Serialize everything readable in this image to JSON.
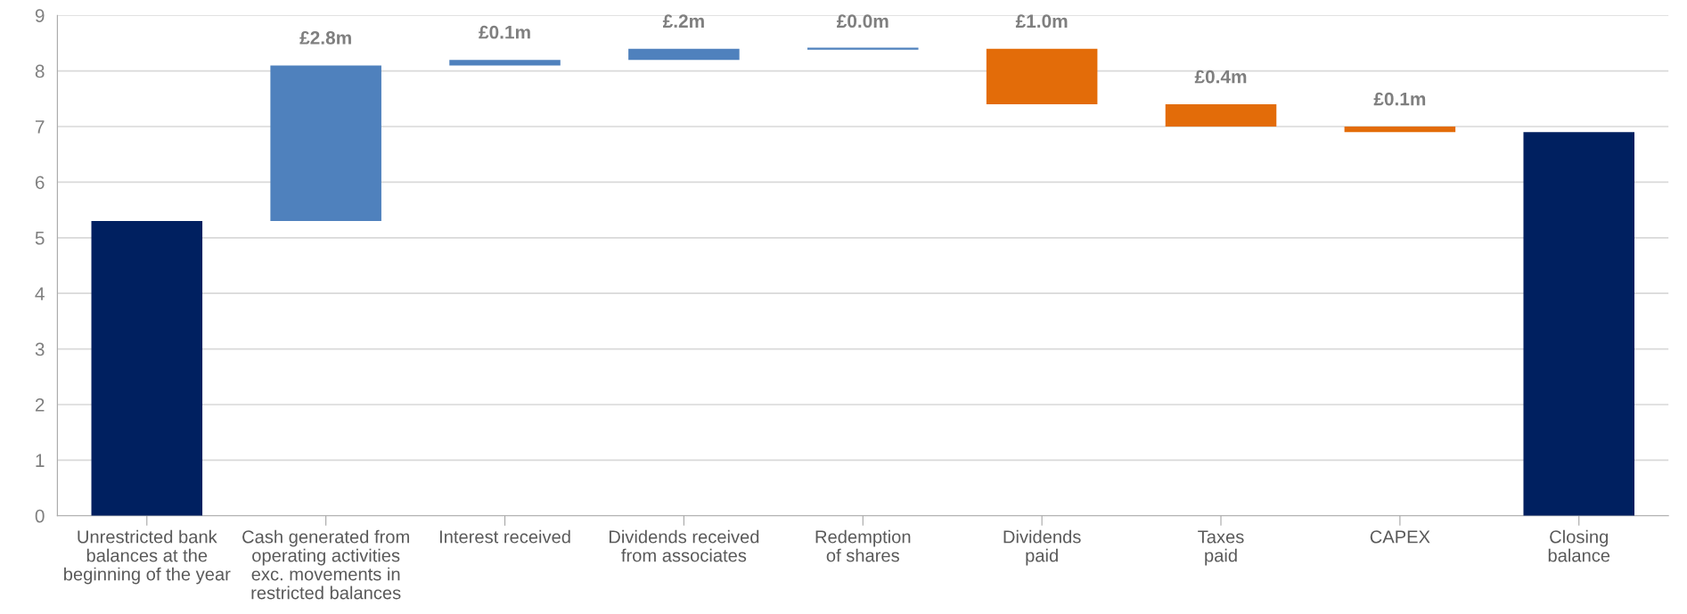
{
  "chart_data": {
    "type": "bar",
    "categories": [
      "Unrestricted bank\nbalances at the\nbeginning of the year",
      "Cash generated from\noperating activities\nexc. movements in\nrestricted balances",
      "Interest received",
      "Dividends received\nfrom associates",
      "Redemption\nof shares",
      "Dividends\npaid",
      "Taxes\npaid",
      "CAPEX",
      "Closing\nbalance"
    ],
    "values": [
      5.3,
      2.8,
      0.1,
      0.2,
      0.0,
      1.0,
      0.4,
      0.1,
      6.9
    ],
    "base": [
      0,
      5.3,
      8.1,
      8.2,
      8.4,
      7.4,
      7.0,
      6.9,
      0
    ],
    "colors": [
      "#002060",
      "#4f81bd",
      "#4f81bd",
      "#4f81bd",
      "#4f81bd",
      "#e36c09",
      "#e36c09",
      "#e36c09",
      "#002060"
    ],
    "value_labels": [
      null,
      "£2.8m",
      "£0.1m",
      "£.2m",
      "£0.0m",
      "£1.0m",
      "£0.4m",
      "£0.1m",
      null
    ],
    "ylim": [
      0,
      9
    ],
    "yticks": [
      0,
      1,
      2,
      3,
      4,
      5,
      6,
      7,
      8,
      9
    ],
    "grid": "y"
  }
}
